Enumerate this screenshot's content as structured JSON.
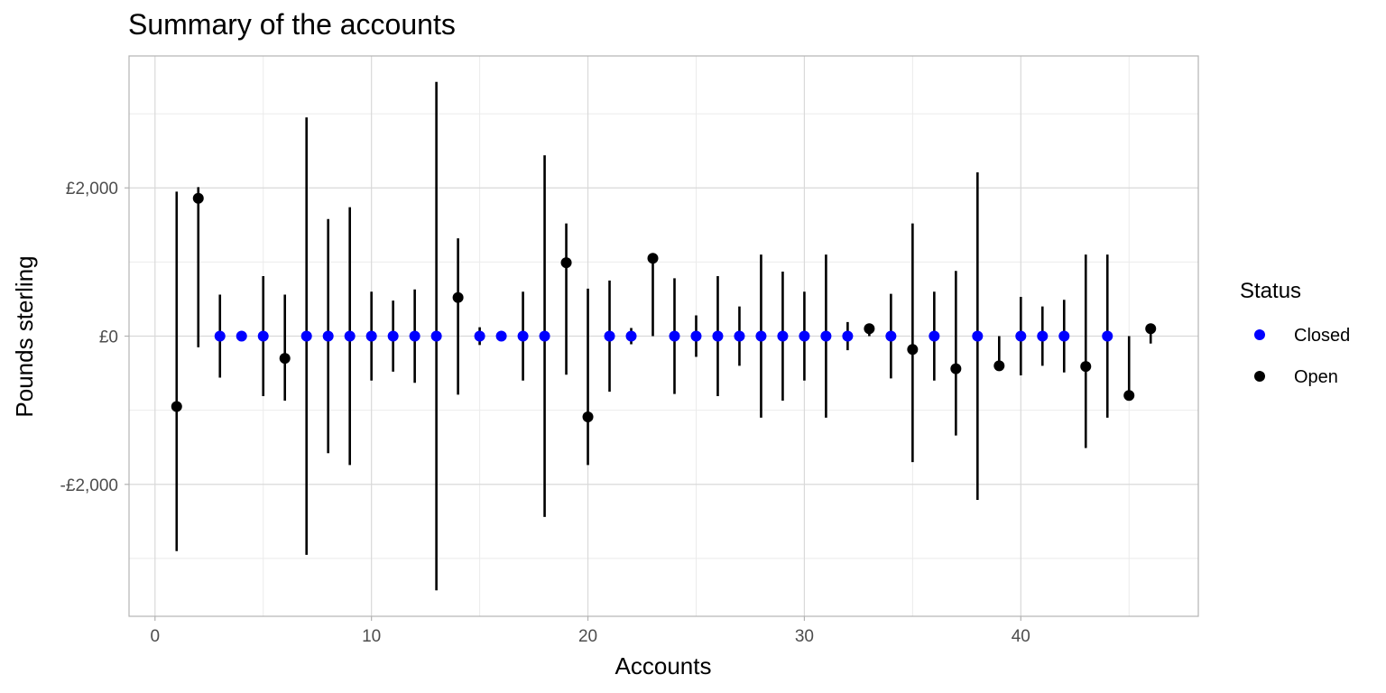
{
  "chart_data": {
    "type": "scatter",
    "title": "Summary of the accounts",
    "xlabel": "Accounts",
    "ylabel": "Pounds sterling",
    "xlim": [
      -1.2,
      48.2
    ],
    "ylim": [
      -3780,
      3780
    ],
    "x_ticks": [
      0,
      10,
      20,
      30,
      40
    ],
    "x_tick_labels": [
      "0",
      "10",
      "20",
      "30",
      "40"
    ],
    "y_ticks": [
      -2000,
      0,
      2000
    ],
    "y_tick_labels": [
      "-£2,000",
      "£0",
      "£2,000"
    ],
    "grid": true,
    "legend": {
      "title": "Status",
      "position": "right",
      "entries": [
        {
          "label": "Closed",
          "color": "#0000ff"
        },
        {
          "label": "Open",
          "color": "#000000"
        }
      ]
    },
    "colors": {
      "Closed": "#0000ff",
      "Open": "#000000",
      "errorbar": "#000000"
    },
    "points": [
      {
        "x": 1,
        "y": -950,
        "ymin": -2900,
        "ymax": 1950,
        "status": "Open"
      },
      {
        "x": 2,
        "y": 1860,
        "ymin": -150,
        "ymax": 2010,
        "status": "Open"
      },
      {
        "x": 3,
        "y": 0,
        "ymin": -560,
        "ymax": 560,
        "status": "Closed"
      },
      {
        "x": 4,
        "y": 0,
        "ymin": 0,
        "ymax": 0,
        "status": "Closed"
      },
      {
        "x": 5,
        "y": 0,
        "ymin": -810,
        "ymax": 810,
        "status": "Closed"
      },
      {
        "x": 6,
        "y": -300,
        "ymin": -870,
        "ymax": 560,
        "status": "Open"
      },
      {
        "x": 7,
        "y": 0,
        "ymin": -2950,
        "ymax": 2950,
        "status": "Closed"
      },
      {
        "x": 8,
        "y": 0,
        "ymin": -1580,
        "ymax": 1580,
        "status": "Closed"
      },
      {
        "x": 9,
        "y": 0,
        "ymin": -1740,
        "ymax": 1740,
        "status": "Closed"
      },
      {
        "x": 10,
        "y": 0,
        "ymin": -600,
        "ymax": 600,
        "status": "Closed"
      },
      {
        "x": 11,
        "y": 0,
        "ymin": -480,
        "ymax": 480,
        "status": "Closed"
      },
      {
        "x": 12,
        "y": 0,
        "ymin": -630,
        "ymax": 630,
        "status": "Closed"
      },
      {
        "x": 13,
        "y": 0,
        "ymin": -3430,
        "ymax": 3430,
        "status": "Closed"
      },
      {
        "x": 14,
        "y": 520,
        "ymin": -790,
        "ymax": 1320,
        "status": "Open"
      },
      {
        "x": 15,
        "y": 0,
        "ymin": -120,
        "ymax": 120,
        "status": "Closed"
      },
      {
        "x": 16,
        "y": 0,
        "ymin": 0,
        "ymax": 0,
        "status": "Closed"
      },
      {
        "x": 17,
        "y": 0,
        "ymin": -600,
        "ymax": 600,
        "status": "Closed"
      },
      {
        "x": 18,
        "y": 0,
        "ymin": -2440,
        "ymax": 2440,
        "status": "Closed"
      },
      {
        "x": 19,
        "y": 990,
        "ymin": -520,
        "ymax": 1520,
        "status": "Open"
      },
      {
        "x": 20,
        "y": -1090,
        "ymin": -1740,
        "ymax": 640,
        "status": "Open"
      },
      {
        "x": 21,
        "y": 0,
        "ymin": -750,
        "ymax": 750,
        "status": "Closed"
      },
      {
        "x": 22,
        "y": 0,
        "ymin": -110,
        "ymax": 110,
        "status": "Closed"
      },
      {
        "x": 23,
        "y": 1050,
        "ymin": 0,
        "ymax": 1050,
        "status": "Open"
      },
      {
        "x": 24,
        "y": 0,
        "ymin": -780,
        "ymax": 780,
        "status": "Closed"
      },
      {
        "x": 25,
        "y": 0,
        "ymin": -280,
        "ymax": 280,
        "status": "Closed"
      },
      {
        "x": 26,
        "y": 0,
        "ymin": -810,
        "ymax": 810,
        "status": "Closed"
      },
      {
        "x": 27,
        "y": 0,
        "ymin": -400,
        "ymax": 400,
        "status": "Closed"
      },
      {
        "x": 28,
        "y": 0,
        "ymin": -1100,
        "ymax": 1100,
        "status": "Closed"
      },
      {
        "x": 29,
        "y": 0,
        "ymin": -870,
        "ymax": 870,
        "status": "Closed"
      },
      {
        "x": 30,
        "y": 0,
        "ymin": -600,
        "ymax": 600,
        "status": "Closed"
      },
      {
        "x": 31,
        "y": 0,
        "ymin": -1100,
        "ymax": 1100,
        "status": "Closed"
      },
      {
        "x": 32,
        "y": 0,
        "ymin": -190,
        "ymax": 190,
        "status": "Closed"
      },
      {
        "x": 33,
        "y": 100,
        "ymin": 0,
        "ymax": 120,
        "status": "Open"
      },
      {
        "x": 34,
        "y": 0,
        "ymin": -570,
        "ymax": 570,
        "status": "Closed"
      },
      {
        "x": 35,
        "y": -180,
        "ymin": -1700,
        "ymax": 1520,
        "status": "Open"
      },
      {
        "x": 36,
        "y": 0,
        "ymin": -600,
        "ymax": 600,
        "status": "Closed"
      },
      {
        "x": 37,
        "y": -440,
        "ymin": -1340,
        "ymax": 880,
        "status": "Open"
      },
      {
        "x": 38,
        "y": 0,
        "ymin": -2210,
        "ymax": 2210,
        "status": "Closed"
      },
      {
        "x": 39,
        "y": -400,
        "ymin": -400,
        "ymax": 0,
        "status": "Open"
      },
      {
        "x": 40,
        "y": 0,
        "ymin": -530,
        "ymax": 530,
        "status": "Closed"
      },
      {
        "x": 41,
        "y": 0,
        "ymin": -400,
        "ymax": 400,
        "status": "Closed"
      },
      {
        "x": 42,
        "y": 0,
        "ymin": -490,
        "ymax": 490,
        "status": "Closed"
      },
      {
        "x": 43,
        "y": -410,
        "ymin": -1510,
        "ymax": 1100,
        "status": "Open"
      },
      {
        "x": 44,
        "y": 0,
        "ymin": -1100,
        "ymax": 1100,
        "status": "Closed"
      },
      {
        "x": 45,
        "y": -800,
        "ymin": -800,
        "ymax": 0,
        "status": "Open"
      },
      {
        "x": 46,
        "y": 100,
        "ymin": -100,
        "ymax": 160,
        "status": "Open"
      }
    ]
  }
}
